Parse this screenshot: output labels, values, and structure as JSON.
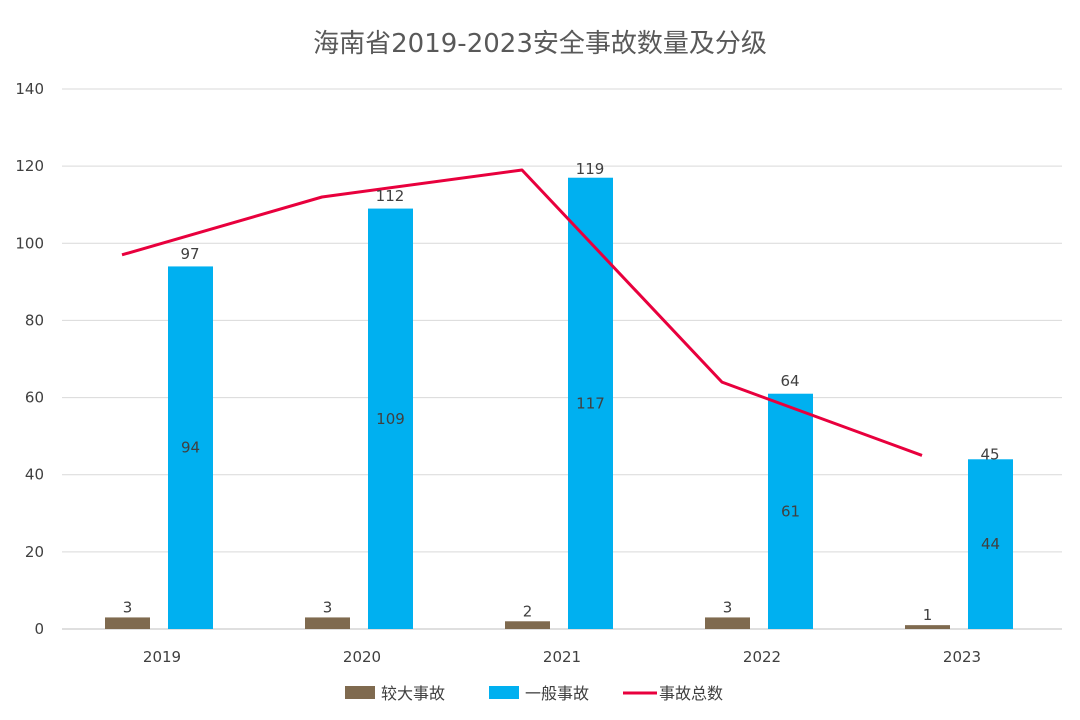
{
  "chart_data": {
    "type": "bar",
    "title": "海南省2019-2023安全事故数量及分级",
    "categories": [
      "2019",
      "2020",
      "2021",
      "2022",
      "2023"
    ],
    "ylim": [
      0,
      140
    ],
    "yticks": [
      0,
      20,
      40,
      60,
      80,
      100,
      120,
      140
    ],
    "grid": true,
    "legend_position": "bottom",
    "series": [
      {
        "name": "较大事故",
        "type": "bar",
        "color": "#7f6a4f",
        "values": [
          3,
          3,
          2,
          3,
          1
        ]
      },
      {
        "name": "一般事故",
        "type": "bar",
        "color": "#00b0f0",
        "values": [
          94,
          109,
          117,
          61,
          44
        ]
      },
      {
        "name": "事故总数",
        "type": "line",
        "color": "#e8003d",
        "values": [
          97,
          112,
          119,
          64,
          45
        ]
      }
    ]
  }
}
